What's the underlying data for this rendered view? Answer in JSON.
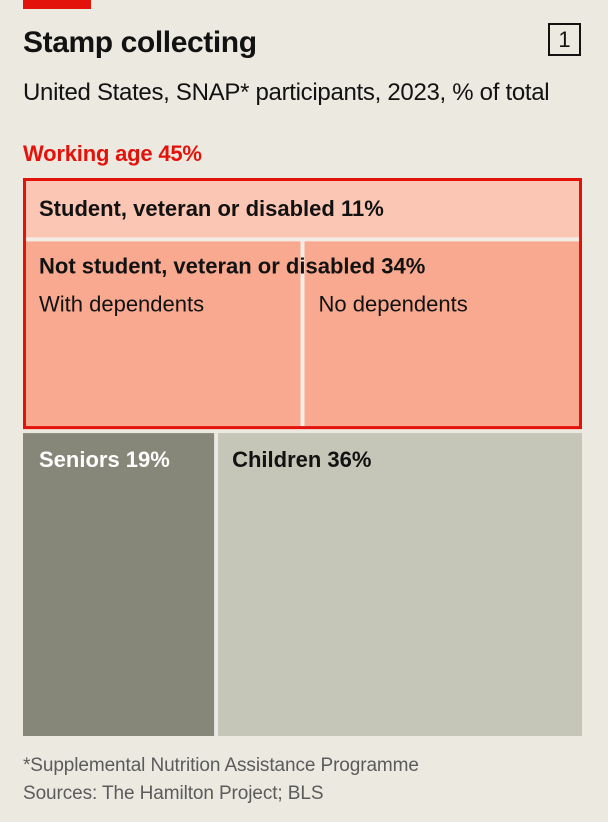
{
  "header": {
    "title": "Stamp collecting",
    "chart_number": "1",
    "subtitle": "United States, SNAP* participants, 2023, % of total"
  },
  "colors": {
    "accent_red": "#e3120b",
    "student_fill": "#fbc6b3",
    "not_student_fill": "#f8a98f",
    "seniors_fill": "#878779",
    "children_fill": "#c5c5b8",
    "divider": "#f4ede6"
  },
  "chart_data": {
    "type": "treemap",
    "title": "Stamp collecting",
    "subtitle": "United States, SNAP* participants, 2023, % of total",
    "unit": "% of total",
    "groups": [
      {
        "name": "Working age",
        "value": 45,
        "label": "Working age 45%",
        "children": [
          {
            "name": "Student, veteran or disabled",
            "value": 11,
            "label": "Student, veteran or disabled 11%"
          },
          {
            "name": "Not student, veteran or disabled",
            "value": 34,
            "label": "Not student, veteran or disabled 34%",
            "children": [
              {
                "name": "With dependents",
                "label": "With dependents"
              },
              {
                "name": "No dependents",
                "label": "No dependents"
              }
            ]
          }
        ]
      },
      {
        "name": "Seniors",
        "value": 19,
        "label": "Seniors 19%"
      },
      {
        "name": "Children",
        "value": 36,
        "label": "Children 36%"
      }
    ]
  },
  "footer": {
    "note": "*Supplemental Nutrition Assistance Programme",
    "sources": "Sources: The Hamilton Project; BLS"
  }
}
